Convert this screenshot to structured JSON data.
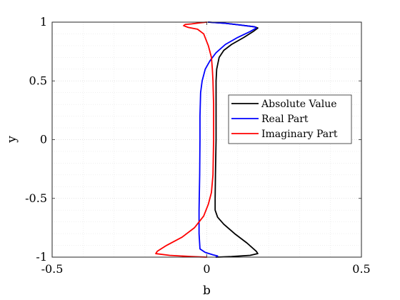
{
  "chart_data": {
    "type": "line",
    "title": "",
    "xlabel": "b",
    "ylabel": "y",
    "xlim": [
      -0.5,
      0.5
    ],
    "ylim": [
      -1,
      1
    ],
    "xticks": [
      -0.5,
      0,
      0.5
    ],
    "xtick_labels": [
      "-0.5",
      "0",
      "0.5"
    ],
    "yticks": [
      -1,
      -0.5,
      0,
      0.5,
      1
    ],
    "ytick_labels": [
      "-1",
      "-0.5",
      "0",
      "0.5",
      "1"
    ],
    "grid": true,
    "minor_grid": true,
    "legend_position": "center-right",
    "series": [
      {
        "name": "Absolute Value",
        "color": "#000000",
        "points": [
          [
            0.005,
            1.0
          ],
          [
            0.06,
            0.99
          ],
          [
            0.11,
            0.975
          ],
          [
            0.155,
            0.96
          ],
          [
            0.165,
            0.95
          ],
          [
            0.15,
            0.92
          ],
          [
            0.12,
            0.87
          ],
          [
            0.08,
            0.81
          ],
          [
            0.055,
            0.76
          ],
          [
            0.04,
            0.7
          ],
          [
            0.032,
            0.6
          ],
          [
            0.03,
            0.5
          ],
          [
            0.03,
            0.3
          ],
          [
            0.03,
            0.0
          ],
          [
            0.028,
            -0.3
          ],
          [
            0.027,
            -0.5
          ],
          [
            0.027,
            -0.6
          ],
          [
            0.035,
            -0.66
          ],
          [
            0.055,
            -0.72
          ],
          [
            0.09,
            -0.8
          ],
          [
            0.13,
            -0.88
          ],
          [
            0.16,
            -0.95
          ],
          [
            0.165,
            -0.97
          ],
          [
            0.14,
            -0.985
          ],
          [
            0.08,
            -0.995
          ],
          [
            0.03,
            -1.0
          ]
        ]
      },
      {
        "name": "Real Part",
        "color": "#0000ff",
        "points": [
          [
            0.005,
            1.0
          ],
          [
            0.06,
            0.99
          ],
          [
            0.11,
            0.975
          ],
          [
            0.155,
            0.96
          ],
          [
            0.16,
            0.95
          ],
          [
            0.14,
            0.92
          ],
          [
            0.1,
            0.87
          ],
          [
            0.06,
            0.81
          ],
          [
            0.03,
            0.74
          ],
          [
            0.01,
            0.67
          ],
          [
            -0.005,
            0.6
          ],
          [
            -0.015,
            0.5
          ],
          [
            -0.02,
            0.4
          ],
          [
            -0.022,
            0.2
          ],
          [
            -0.022,
            0.0
          ],
          [
            -0.023,
            -0.3
          ],
          [
            -0.025,
            -0.6
          ],
          [
            -0.025,
            -0.8
          ],
          [
            -0.022,
            -0.93
          ],
          [
            -0.005,
            -0.96
          ],
          [
            0.02,
            -0.98
          ],
          [
            0.035,
            -0.99
          ],
          [
            0.03,
            -1.0
          ]
        ]
      },
      {
        "name": "Imaginary Part",
        "color": "#ff0000",
        "points": [
          [
            0.0,
            1.0
          ],
          [
            -0.02,
            0.995
          ],
          [
            -0.05,
            0.985
          ],
          [
            -0.07,
            0.98
          ],
          [
            -0.075,
            0.97
          ],
          [
            -0.06,
            0.955
          ],
          [
            -0.03,
            0.94
          ],
          [
            -0.01,
            0.9
          ],
          [
            0.005,
            0.8
          ],
          [
            0.015,
            0.7
          ],
          [
            0.018,
            0.6
          ],
          [
            0.02,
            0.5
          ],
          [
            0.022,
            0.3
          ],
          [
            0.022,
            0.0
          ],
          [
            0.02,
            -0.3
          ],
          [
            0.015,
            -0.45
          ],
          [
            0.005,
            -0.55
          ],
          [
            -0.01,
            -0.65
          ],
          [
            -0.04,
            -0.75
          ],
          [
            -0.08,
            -0.83
          ],
          [
            -0.13,
            -0.9
          ],
          [
            -0.16,
            -0.95
          ],
          [
            -0.165,
            -0.97
          ],
          [
            -0.12,
            -0.985
          ],
          [
            -0.05,
            -0.995
          ],
          [
            0.0,
            -1.0
          ]
        ]
      }
    ]
  }
}
